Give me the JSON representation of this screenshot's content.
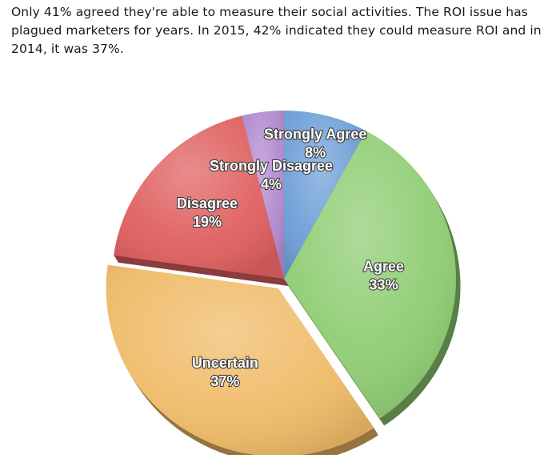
{
  "intro_text": "Only 41% agreed they're able to measure their social activities. The ROI issue has plagued marketers for years. In 2015, 42% indicated they could measure ROI and in 2014, it was 37%.",
  "chart_data": {
    "type": "pie",
    "title": "",
    "start_category": "Strongly Agree",
    "direction": "clockwise",
    "exploded_slice": "Uncertain",
    "slices": [
      {
        "label": "Strongly Agree",
        "value": 8,
        "value_label": "8%",
        "color": "#6fa0d8"
      },
      {
        "label": "Agree",
        "value": 33,
        "value_label": "33%",
        "color": "#8fcd73"
      },
      {
        "label": "Uncertain",
        "value": 37,
        "value_label": "37%",
        "color": "#f0bb68"
      },
      {
        "label": "Disagree",
        "value": 19,
        "value_label": "19%",
        "color": "#e06060"
      },
      {
        "label": "Strongly Disagree",
        "value": 4,
        "value_label": "4%",
        "color": "#b28ad0"
      }
    ]
  }
}
